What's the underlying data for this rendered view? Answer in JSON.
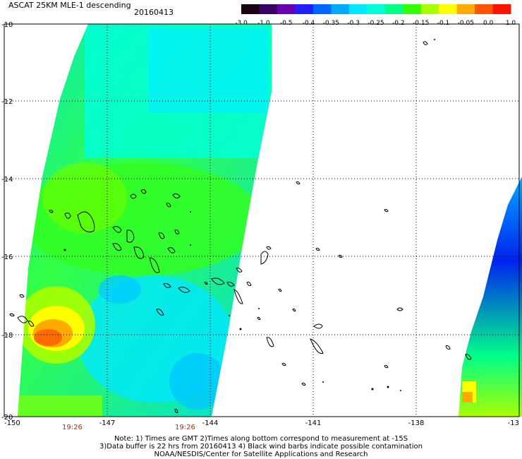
{
  "title": "ASCAT 25KM MLE-1 descending",
  "date": "20160413",
  "colorbar": {
    "colors": [
      "#1a0010",
      "#3a0068",
      "#6a00b0",
      "#2020ff",
      "#0066ff",
      "#00aaff",
      "#00e8ff",
      "#00ffd8",
      "#00ff88",
      "#33ff00",
      "#aaff00",
      "#ffff00",
      "#ffaa00",
      "#ff5500",
      "#ff1100"
    ],
    "labels": [
      "-3.0",
      "-1.0",
      "-0.5",
      "-0.4",
      "-0.35",
      "-0.3",
      "-0.25",
      "-0.2",
      "-0.15",
      "-0.1",
      "-0.05",
      "0.0",
      "1.0"
    ]
  },
  "axes": {
    "x_ticks": [
      "-150",
      "-147",
      "-144",
      "-141",
      "-138",
      "-13"
    ],
    "y_ticks": [
      "-10",
      "-12",
      "-14",
      "-16",
      "-18",
      "-20"
    ]
  },
  "time_labels": [
    "19:26",
    "19:26"
  ],
  "notes": [
    "Note: 1) Times are GMT 2)Times along bottom correspond to measurement at -15S",
    "3)Data buffer is 22 hrs from 20160413 4) Black wind barbs indicate possible contamination",
    "NOAA/NESDIS/Center for Satellite Applications and Research"
  ]
}
